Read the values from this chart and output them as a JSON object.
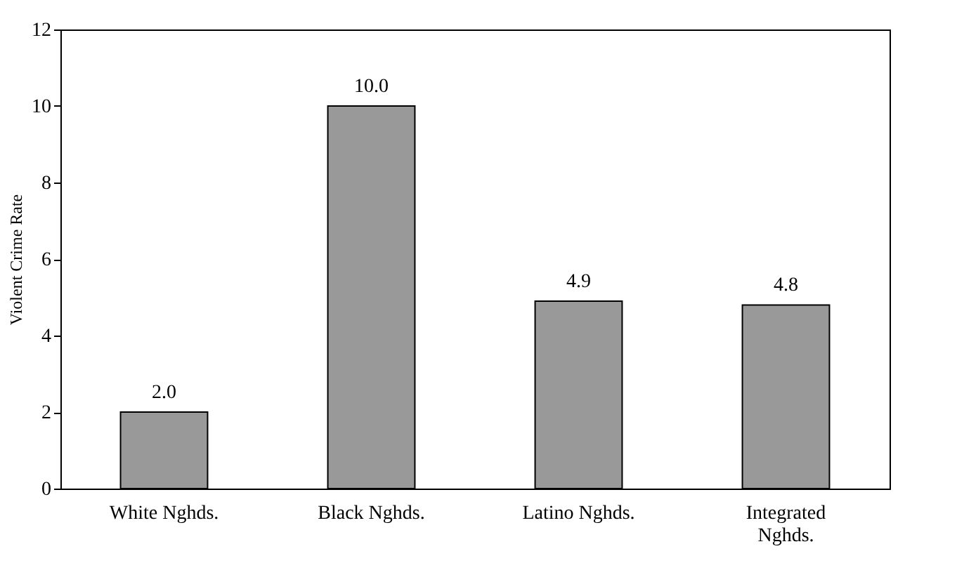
{
  "chart_data": {
    "type": "bar",
    "ylabel": "Violent Crime Rate",
    "categories": [
      "White Nghds.",
      "Black Nghds.",
      "Latino Nghds.",
      "Integrated Nghds."
    ],
    "values": [
      2.0,
      10.0,
      4.9,
      4.8
    ],
    "value_labels": [
      "2.0",
      "10.0",
      "4.9",
      "4.8"
    ],
    "color": "#999999",
    "ylim": [
      0,
      12
    ],
    "yticks": [
      0,
      2,
      4,
      6,
      8,
      10,
      12
    ],
    "grid": false
  }
}
